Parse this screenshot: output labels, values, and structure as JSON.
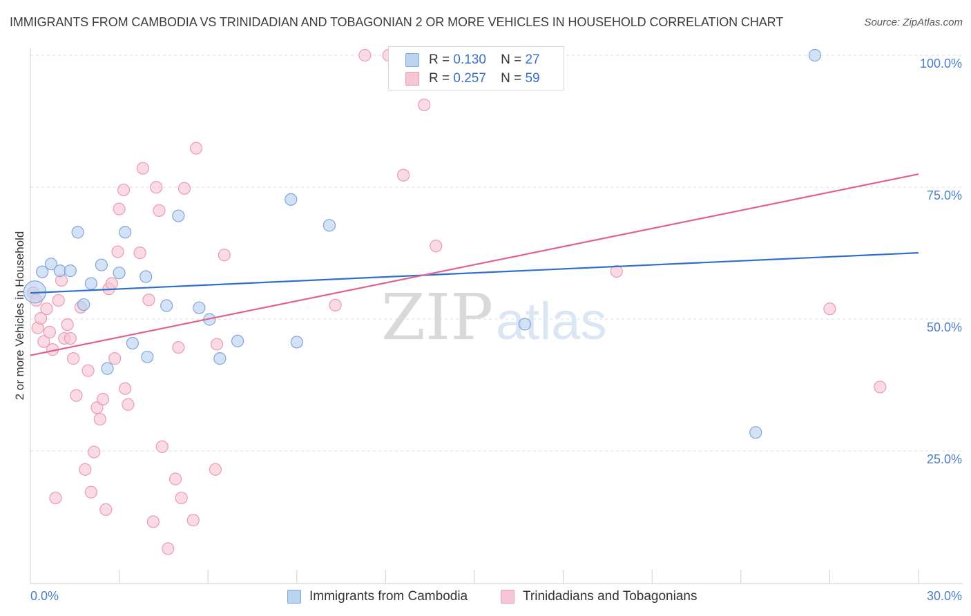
{
  "header": {
    "title": "IMMIGRANTS FROM CAMBODIA VS TRINIDADIAN AND TOBAGONIAN 2 OR MORE VEHICLES IN HOUSEHOLD CORRELATION CHART",
    "source": "Source: ZipAtlas.com"
  },
  "legend": {
    "series1": {
      "r_label": "R =",
      "r_value": "0.130",
      "n_label": "N =",
      "n_value": "27"
    },
    "series2": {
      "r_label": "R =",
      "r_value": "0.257",
      "n_label": "N =",
      "n_value": "59"
    }
  },
  "bottom_legend": {
    "series1_label": "Immigrants from Cambodia",
    "series2_label": "Trinidadians and Tobagonians"
  },
  "watermark": {
    "zip": "ZIP",
    "atlas": "atlas"
  },
  "colors": {
    "blue_fill": "#bcd3f0",
    "blue_stroke": "#7fa6dc",
    "blue_line": "#2f6fcc",
    "pink_fill": "#f7c6d4",
    "pink_stroke": "#eb9bb4",
    "pink_line": "#e0628f",
    "grid": "#dcdcdc",
    "tick_text": "#4a7fc8"
  },
  "chart_data": {
    "type": "scatter",
    "title": "IMMIGRANTS FROM CAMBODIA VS TRINIDADIAN AND TOBAGONIAN 2 OR MORE VEHICLES IN HOUSEHOLD CORRELATION CHART",
    "xlabel": "",
    "ylabel": "2 or more Vehicles in Household",
    "xlim": [
      0,
      30
    ],
    "ylim": [
      0,
      100
    ],
    "x_tick_labels": [
      "0.0%",
      "30.0%"
    ],
    "y_ticks": [
      25,
      50,
      75,
      100
    ],
    "y_tick_labels": [
      "25.0%",
      "50.0%",
      "75.0%",
      "100.0%"
    ],
    "grid": true,
    "series": [
      {
        "name": "Immigrants from Cambodia",
        "r": 0.13,
        "n": 27,
        "trend": {
          "x": [
            0,
            30
          ],
          "y": [
            55.0,
            62.6
          ]
        },
        "points": [
          {
            "x": 0.15,
            "y": 55.2,
            "big": true
          },
          {
            "x": 0.4,
            "y": 59.0
          },
          {
            "x": 0.7,
            "y": 60.5
          },
          {
            "x": 1.0,
            "y": 59.2
          },
          {
            "x": 1.35,
            "y": 59.2
          },
          {
            "x": 1.6,
            "y": 66.5
          },
          {
            "x": 1.8,
            "y": 52.8
          },
          {
            "x": 2.05,
            "y": 56.8
          },
          {
            "x": 2.4,
            "y": 60.3
          },
          {
            "x": 2.6,
            "y": 40.7
          },
          {
            "x": 3.0,
            "y": 58.8
          },
          {
            "x": 3.2,
            "y": 66.5
          },
          {
            "x": 3.45,
            "y": 45.5
          },
          {
            "x": 3.9,
            "y": 58.1
          },
          {
            "x": 3.95,
            "y": 42.9
          },
          {
            "x": 4.6,
            "y": 52.6
          },
          {
            "x": 5.0,
            "y": 69.6
          },
          {
            "x": 5.7,
            "y": 52.2
          },
          {
            "x": 6.05,
            "y": 50.0
          },
          {
            "x": 6.4,
            "y": 42.6
          },
          {
            "x": 7.0,
            "y": 45.9
          },
          {
            "x": 8.8,
            "y": 72.7
          },
          {
            "x": 9.0,
            "y": 45.7
          },
          {
            "x": 10.1,
            "y": 67.8
          },
          {
            "x": 16.7,
            "y": 49.1
          },
          {
            "x": 24.5,
            "y": 28.6
          },
          {
            "x": 26.5,
            "y": 100.0
          }
        ]
      },
      {
        "name": "Trinidadians and Tobagonians",
        "r": 0.257,
        "n": 59,
        "trend": {
          "x": [
            0,
            30
          ],
          "y": [
            43.2,
            77.5
          ]
        },
        "points": [
          {
            "x": 0.1,
            "y": 55.0
          },
          {
            "x": 0.2,
            "y": 53.6
          },
          {
            "x": 0.25,
            "y": 48.4
          },
          {
            "x": 0.35,
            "y": 50.2
          },
          {
            "x": 0.45,
            "y": 45.8
          },
          {
            "x": 0.55,
            "y": 52.0
          },
          {
            "x": 0.65,
            "y": 47.6
          },
          {
            "x": 0.75,
            "y": 44.3
          },
          {
            "x": 0.85,
            "y": 16.2
          },
          {
            "x": 0.95,
            "y": 53.6
          },
          {
            "x": 1.05,
            "y": 57.4
          },
          {
            "x": 1.15,
            "y": 46.4
          },
          {
            "x": 1.25,
            "y": 49.0
          },
          {
            "x": 1.35,
            "y": 46.4
          },
          {
            "x": 1.45,
            "y": 42.6
          },
          {
            "x": 1.55,
            "y": 35.6
          },
          {
            "x": 1.7,
            "y": 52.3
          },
          {
            "x": 1.85,
            "y": 21.6
          },
          {
            "x": 1.95,
            "y": 40.3
          },
          {
            "x": 2.05,
            "y": 17.3
          },
          {
            "x": 2.15,
            "y": 24.9
          },
          {
            "x": 2.25,
            "y": 33.3
          },
          {
            "x": 2.35,
            "y": 31.1
          },
          {
            "x": 2.45,
            "y": 34.9
          },
          {
            "x": 2.55,
            "y": 14.0
          },
          {
            "x": 2.65,
            "y": 55.8
          },
          {
            "x": 2.75,
            "y": 56.8
          },
          {
            "x": 2.85,
            "y": 42.6
          },
          {
            "x": 2.95,
            "y": 62.8
          },
          {
            "x": 3.0,
            "y": 70.9
          },
          {
            "x": 3.15,
            "y": 74.5
          },
          {
            "x": 3.2,
            "y": 36.9
          },
          {
            "x": 3.3,
            "y": 33.9
          },
          {
            "x": 3.7,
            "y": 62.6
          },
          {
            "x": 3.8,
            "y": 78.6
          },
          {
            "x": 4.0,
            "y": 53.7
          },
          {
            "x": 4.15,
            "y": 11.7
          },
          {
            "x": 4.25,
            "y": 75.0
          },
          {
            "x": 4.35,
            "y": 70.6
          },
          {
            "x": 4.45,
            "y": 25.9
          },
          {
            "x": 4.65,
            "y": 6.6
          },
          {
            "x": 4.9,
            "y": 19.8
          },
          {
            "x": 5.0,
            "y": 44.7
          },
          {
            "x": 5.1,
            "y": 16.2
          },
          {
            "x": 5.2,
            "y": 74.8
          },
          {
            "x": 5.5,
            "y": 12.0
          },
          {
            "x": 5.6,
            "y": 82.4
          },
          {
            "x": 6.3,
            "y": 45.3
          },
          {
            "x": 6.25,
            "y": 21.6
          },
          {
            "x": 6.55,
            "y": 62.2
          },
          {
            "x": 10.3,
            "y": 52.7
          },
          {
            "x": 11.3,
            "y": 100.0
          },
          {
            "x": 12.1,
            "y": 100.0
          },
          {
            "x": 12.6,
            "y": 77.3
          },
          {
            "x": 13.3,
            "y": 90.6
          },
          {
            "x": 13.7,
            "y": 63.9
          },
          {
            "x": 19.8,
            "y": 59.1
          },
          {
            "x": 28.7,
            "y": 37.2
          },
          {
            "x": 27.0,
            "y": 52.0
          }
        ]
      }
    ]
  }
}
